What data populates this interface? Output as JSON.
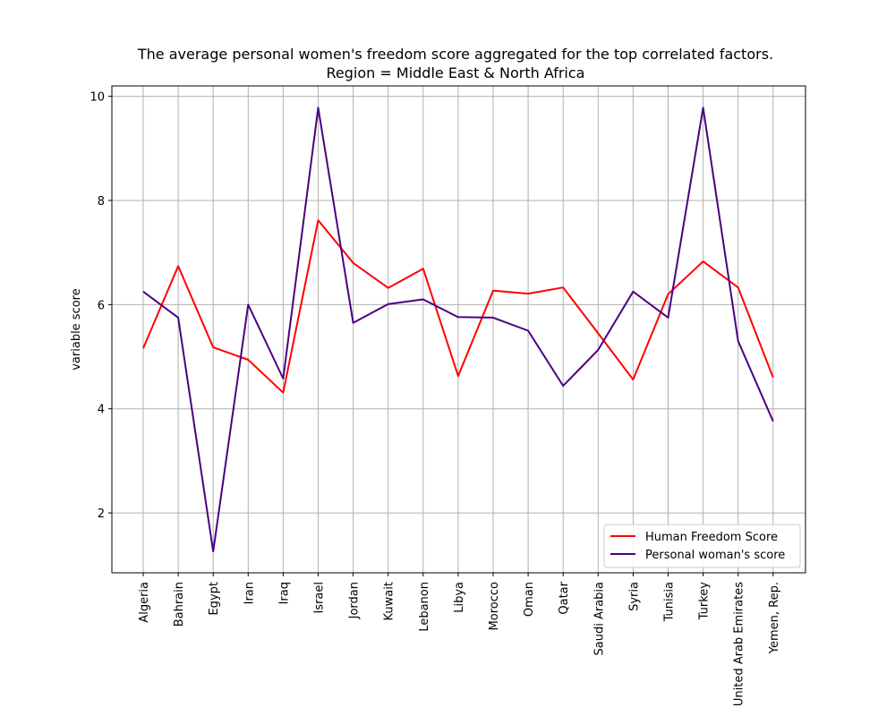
{
  "chart_data": {
    "type": "line",
    "title_line1": "The average personal women's freedom score aggregated for the top correlated factors.",
    "title_line2": "Region = Middle East & North Africa",
    "xlabel": "",
    "ylabel": "variable score",
    "ylim": [
      0.85,
      10.2
    ],
    "yticks": [
      2,
      4,
      6,
      8,
      10
    ],
    "grid": true,
    "legend_position": "lower-right",
    "categories": [
      "Algeria",
      "Bahrain",
      "Egypt",
      "Iran",
      "Iraq",
      "Israel",
      "Jordan",
      "Kuwait",
      "Lebanon",
      "Libya",
      "Morocco",
      "Oman",
      "Qatar",
      "Saudi Arabia",
      "Syria",
      "Tunisia",
      "Turkey",
      "United Arab Emirates",
      "Yemen, Rep."
    ],
    "series": [
      {
        "name": "Human Freedom Score",
        "color": "#ff0000",
        "values": [
          5.16,
          6.74,
          5.18,
          4.94,
          4.31,
          7.62,
          6.8,
          6.32,
          6.69,
          4.63,
          6.27,
          6.21,
          6.33,
          5.45,
          4.56,
          6.2,
          6.83,
          6.33,
          4.6
        ]
      },
      {
        "name": "Personal woman's score",
        "color": "#4b0082",
        "values": [
          6.25,
          5.75,
          1.26,
          6.0,
          4.58,
          9.78,
          5.65,
          6.01,
          6.1,
          5.76,
          5.75,
          5.5,
          4.44,
          5.13,
          6.25,
          5.75,
          9.78,
          5.3,
          3.76
        ]
      }
    ]
  }
}
